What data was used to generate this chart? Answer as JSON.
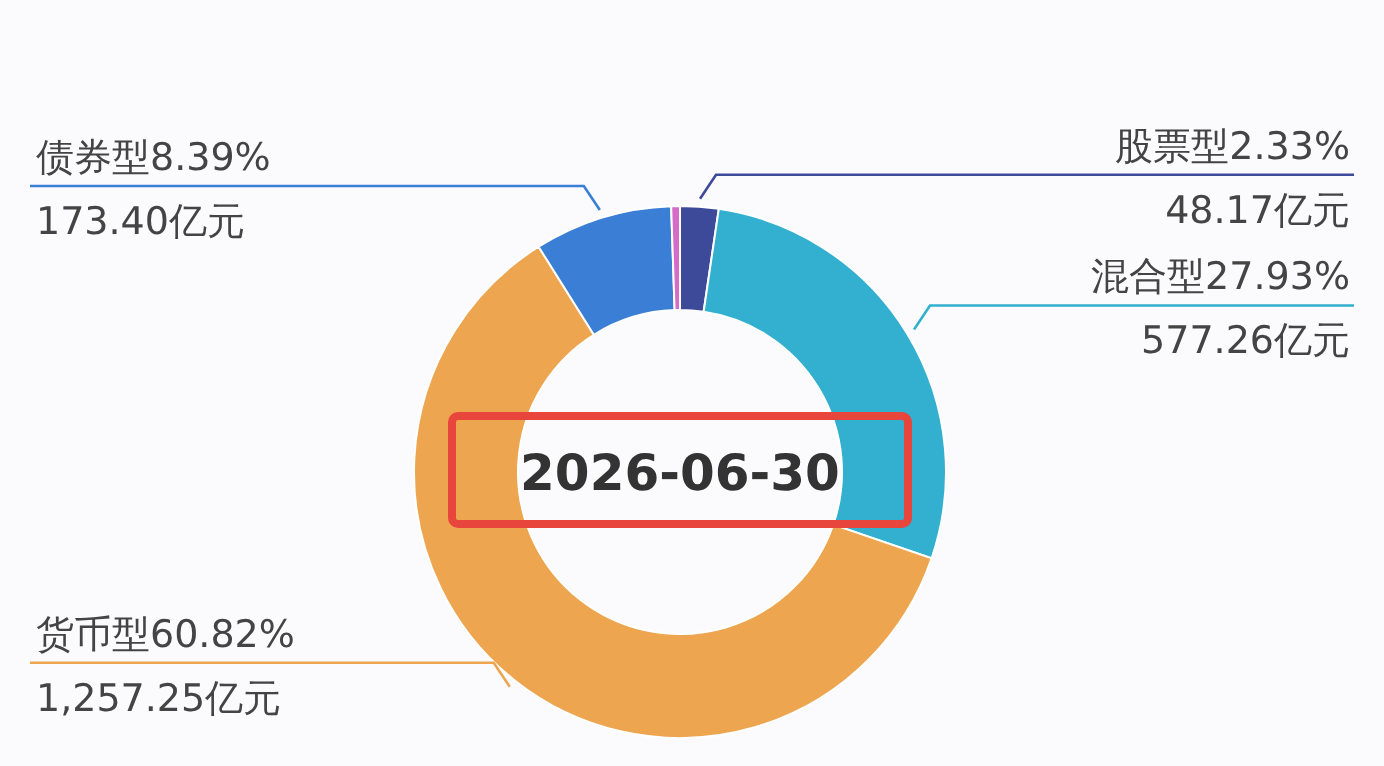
{
  "chart_data": {
    "type": "donut",
    "title": "2026-06-30",
    "categories": [
      "股票型",
      "混合型",
      "货币型",
      "债券型",
      null
    ],
    "values": [
      2.33,
      27.93,
      60.82,
      8.39,
      0.53
    ],
    "colors": [
      "#3d4a9a",
      "#33b0d0",
      "#eea550",
      "#3a7fd5",
      "#d46cc8"
    ],
    "value_labels": [
      "2.33%",
      "27.93%",
      "60.82%",
      "8.39%",
      null
    ],
    "annotations": [
      "48.17亿元",
      "577.26亿元",
      "1,257.25亿元",
      "173.40亿元"
    ]
  }
}
